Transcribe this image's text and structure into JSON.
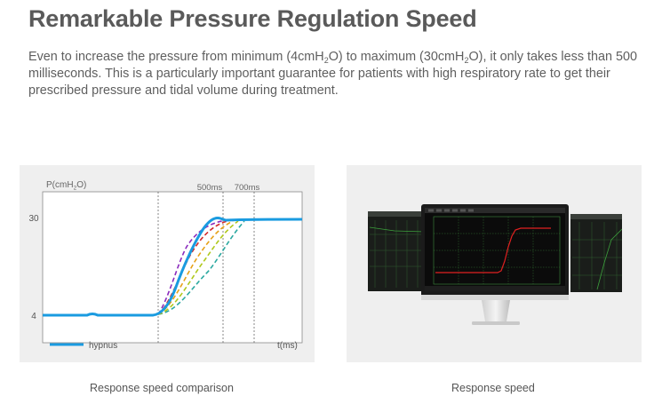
{
  "page": {
    "title": "Remarkable Pressure Regulation Speed",
    "description": {
      "part1": "Even to increase the pressure from minimum (4cmH",
      "sub1": "2",
      "part2": "O) to maximum (30cmH",
      "sub2": "2",
      "part3": "O), it only takes less than 500 milliseconds. This is a particularly important guarantee for patients with high respiratory rate to get their prescribed pressure and tidal volume during treatment."
    },
    "caption_left": "Response speed comparison",
    "caption_right": "Response speed"
  },
  "chart_data": {
    "type": "line",
    "ylabel_main": "P(cmH",
    "ylabel_sub": "2",
    "ylabel_end": "O)",
    "xlabel": "t(ms)",
    "y_ticks": [
      "30",
      "4"
    ],
    "marker_labels": [
      "500ms",
      "700ms"
    ],
    "legend": [
      {
        "name": "hypnus",
        "color": "#1a9be0"
      }
    ],
    "colors": {
      "main": "#1a9be0",
      "dashed": [
        "#8a2bbd",
        "#d22a2a",
        "#e6a117",
        "#b0c81c",
        "#2aa8a0"
      ]
    }
  },
  "monitor": {
    "trace_color": "#e02020",
    "grid_color": "#3c8a3c",
    "screen_color": "#0b0b0b"
  }
}
